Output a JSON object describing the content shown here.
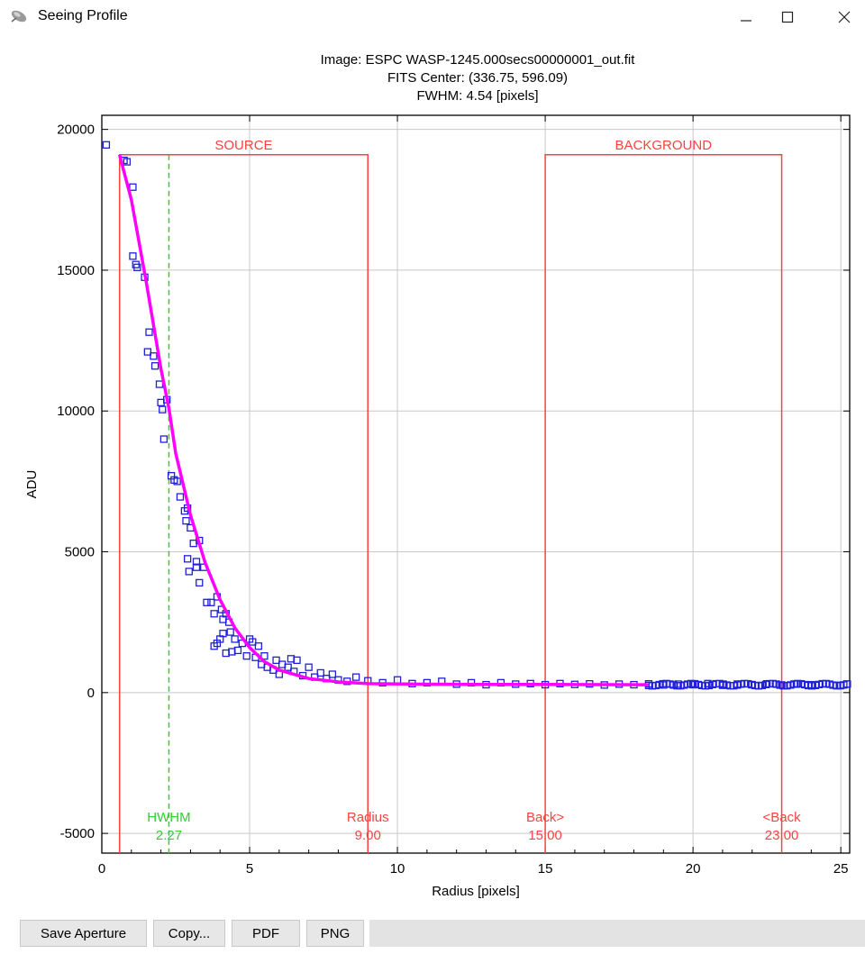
{
  "window": {
    "title": "Seeing Profile",
    "icon": "satellite-icon",
    "controls": [
      "minimize-icon",
      "maximize-icon",
      "close-icon"
    ]
  },
  "chart_data": {
    "type": "scatter",
    "title_lines": [
      "Image: ESPC WASP-1245.000secs00000001_out.fit",
      "FITS Center: (336.75,  596.09)",
      "FWHM: 4.54 [pixels]"
    ],
    "xlabel": "Radius [pixels]",
    "ylabel": "ADU",
    "xlim": [
      0,
      25.3
    ],
    "ylim": [
      -5700,
      20500
    ],
    "xticks": [
      0,
      5,
      10,
      15,
      20,
      25
    ],
    "yticks": [
      -5000,
      0,
      5000,
      10000,
      15000,
      20000
    ],
    "grid": true,
    "colors": {
      "points": "#1f1fdd",
      "fit": "#ff00ff",
      "aperture": "#ff4040",
      "hwhm": "#33cc33",
      "grid": "#c8c8c8"
    },
    "aperture_top": 19100,
    "regions": [
      {
        "label": "SOURCE",
        "x_start": 0.6,
        "x_end": 9.0
      },
      {
        "label": "BACKGROUND",
        "x_start": 15.0,
        "x_end": 23.0
      }
    ],
    "markers": [
      {
        "name": "HWHM",
        "x": 2.27,
        "value": "2.27",
        "color": "hwhm"
      },
      {
        "name": "Radius",
        "x": 9.0,
        "value": "9.00",
        "color": "aperture"
      },
      {
        "name": "Back>",
        "x": 15.0,
        "value": "15.00",
        "color": "aperture"
      },
      {
        "name": "<Back",
        "x": 23.0,
        "value": "23.00",
        "color": "aperture"
      }
    ],
    "fit_curve": [
      [
        0.6,
        19100
      ],
      [
        1.0,
        17500
      ],
      [
        1.5,
        14600
      ],
      [
        2.0,
        11500
      ],
      [
        2.27,
        10100
      ],
      [
        2.5,
        8500
      ],
      [
        3.0,
        6300
      ],
      [
        3.5,
        4600
      ],
      [
        4.0,
        3300
      ],
      [
        4.5,
        2300
      ],
      [
        5.0,
        1600
      ],
      [
        5.5,
        1100
      ],
      [
        6.0,
        800
      ],
      [
        7.0,
        500
      ],
      [
        8.0,
        380
      ],
      [
        9.0,
        320
      ],
      [
        11.0,
        300
      ],
      [
        13.0,
        290
      ],
      [
        15.0,
        290
      ],
      [
        18.5,
        280
      ]
    ],
    "points": [
      [
        0.15,
        19450
      ],
      [
        0.75,
        18900
      ],
      [
        0.85,
        18850
      ],
      [
        1.05,
        17950
      ],
      [
        1.05,
        15500
      ],
      [
        1.15,
        15200
      ],
      [
        1.2,
        15100
      ],
      [
        1.45,
        14750
      ],
      [
        1.6,
        12800
      ],
      [
        1.55,
        12100
      ],
      [
        1.75,
        11950
      ],
      [
        1.8,
        11600
      ],
      [
        1.95,
        10950
      ],
      [
        2.0,
        10300
      ],
      [
        2.05,
        10050
      ],
      [
        2.2,
        10400
      ],
      [
        2.1,
        9000
      ],
      [
        2.35,
        7700
      ],
      [
        2.45,
        7550
      ],
      [
        2.55,
        7500
      ],
      [
        2.65,
        6950
      ],
      [
        2.8,
        6450
      ],
      [
        2.9,
        6550
      ],
      [
        2.85,
        6100
      ],
      [
        3.0,
        5850
      ],
      [
        2.9,
        4750
      ],
      [
        2.95,
        4300
      ],
      [
        3.1,
        5300
      ],
      [
        3.2,
        4650
      ],
      [
        3.3,
        5400
      ],
      [
        3.2,
        4450
      ],
      [
        3.45,
        4450
      ],
      [
        3.3,
        3900
      ],
      [
        3.55,
        3200
      ],
      [
        3.7,
        3200
      ],
      [
        3.8,
        2800
      ],
      [
        3.9,
        3400
      ],
      [
        4.05,
        2950
      ],
      [
        4.1,
        2600
      ],
      [
        4.2,
        2800
      ],
      [
        3.8,
        1650
      ],
      [
        3.9,
        1750
      ],
      [
        4.0,
        1900
      ],
      [
        4.1,
        2100
      ],
      [
        4.3,
        2500
      ],
      [
        4.35,
        2150
      ],
      [
        4.5,
        1900
      ],
      [
        4.6,
        1500
      ],
      [
        4.75,
        1750
      ],
      [
        4.2,
        1400
      ],
      [
        4.4,
        1450
      ],
      [
        4.9,
        1300
      ],
      [
        5.0,
        1900
      ],
      [
        5.1,
        1800
      ],
      [
        5.2,
        1250
      ],
      [
        5.3,
        1650
      ],
      [
        5.4,
        1000
      ],
      [
        5.5,
        1300
      ],
      [
        5.6,
        900
      ],
      [
        5.8,
        800
      ],
      [
        5.9,
        1150
      ],
      [
        6.0,
        650
      ],
      [
        6.1,
        1000
      ],
      [
        6.3,
        900
      ],
      [
        6.4,
        1200
      ],
      [
        6.5,
        750
      ],
      [
        6.6,
        1150
      ],
      [
        6.8,
        600
      ],
      [
        7.0,
        900
      ],
      [
        7.2,
        550
      ],
      [
        7.4,
        700
      ],
      [
        7.6,
        500
      ],
      [
        7.8,
        650
      ],
      [
        8.0,
        450
      ],
      [
        8.3,
        400
      ],
      [
        8.6,
        550
      ],
      [
        9.0,
        420
      ],
      [
        9.5,
        350
      ],
      [
        10.0,
        450
      ],
      [
        10.5,
        320
      ],
      [
        11.0,
        350
      ],
      [
        11.5,
        400
      ],
      [
        12.0,
        300
      ],
      [
        12.5,
        350
      ],
      [
        13.0,
        280
      ],
      [
        13.5,
        350
      ],
      [
        14.0,
        300
      ],
      [
        14.5,
        320
      ],
      [
        15.0,
        280
      ],
      [
        15.5,
        320
      ],
      [
        16.0,
        290
      ],
      [
        16.5,
        310
      ],
      [
        17.0,
        270
      ],
      [
        17.5,
        300
      ],
      [
        18.0,
        280
      ],
      [
        18.5,
        310
      ],
      [
        19.0,
        270
      ],
      [
        19.5,
        300
      ],
      [
        20.0,
        280
      ],
      [
        20.5,
        320
      ],
      [
        21.0,
        260
      ],
      [
        21.5,
        300
      ],
      [
        22.0,
        280
      ],
      [
        22.5,
        310
      ],
      [
        23.0,
        270
      ],
      [
        23.5,
        300
      ],
      [
        24.0,
        280
      ],
      [
        24.5,
        310
      ],
      [
        25.0,
        260
      ],
      [
        25.2,
        300
      ]
    ]
  },
  "toolbar": {
    "buttons": [
      "Save Aperture",
      "Copy...",
      "PDF",
      "PNG"
    ]
  }
}
